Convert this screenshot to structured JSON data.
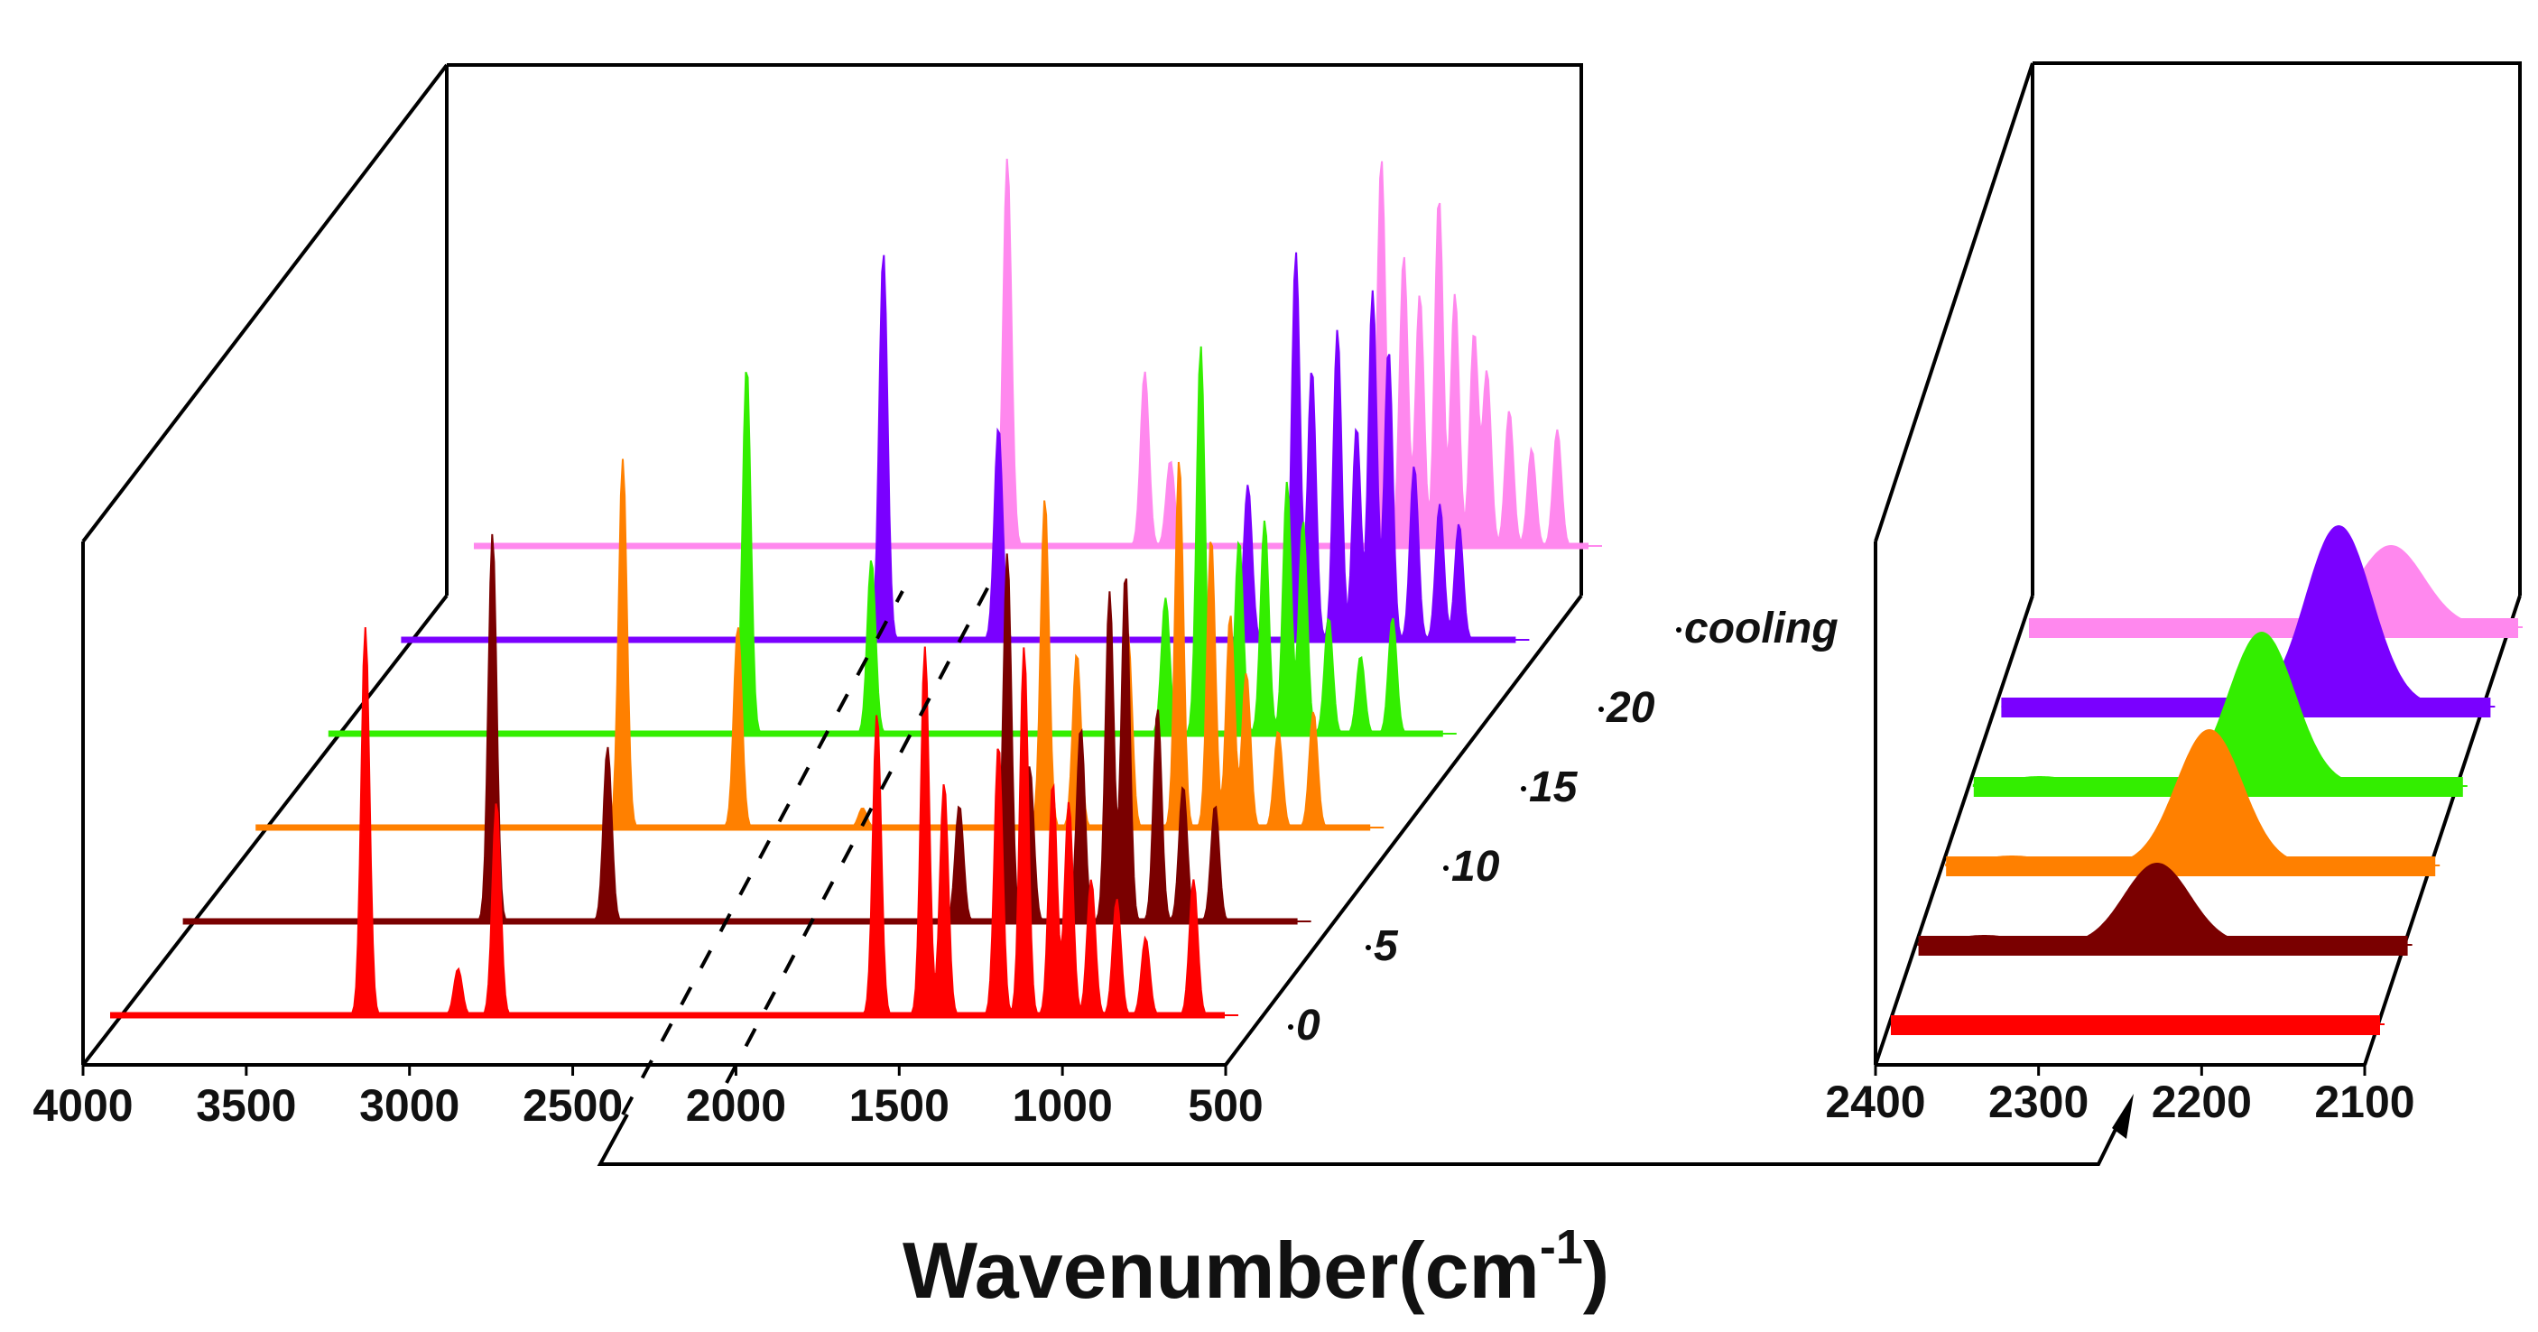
{
  "chart_data": [
    {
      "type": "line",
      "style": "3D waterfall, filled spectra",
      "panel": "main",
      "x_reversed": true,
      "xlim": [
        4000,
        500
      ],
      "xticks": [
        4000,
        3500,
        3000,
        2500,
        2000,
        1500,
        1000,
        500
      ],
      "xtick_labels": [
        "4000",
        "3500",
        "3000",
        "2500",
        "2000",
        "1500",
        "1000",
        "500"
      ],
      "ylabel": "",
      "zlabel": "",
      "depth_labels": [
        "0",
        "5",
        "10",
        "15",
        "20",
        "cooling"
      ],
      "series": [
        {
          "name": "0",
          "color": "#ff0000",
          "peaks": [
            [
              3230,
              1.0
            ],
            [
              2820,
              0.55
            ],
            [
              2940,
              0.12
            ],
            [
              1630,
              0.78
            ],
            [
              1480,
              0.95
            ],
            [
              1420,
              0.6
            ],
            [
              1250,
              0.7
            ],
            [
              1170,
              0.95
            ],
            [
              1080,
              0.6
            ],
            [
              1030,
              0.55
            ],
            [
              960,
              0.35
            ],
            [
              880,
              0.3
            ],
            [
              790,
              0.2
            ],
            [
              640,
              0.35
            ]
          ]
        },
        {
          "name": "5",
          "color": "#7a0000",
          "peaks": [
            [
              3060,
              1.0
            ],
            [
              2700,
              0.45
            ],
            [
              1600,
              0.3
            ],
            [
              1450,
              0.95
            ],
            [
              1380,
              0.4
            ],
            [
              1220,
              0.5
            ],
            [
              1130,
              0.85
            ],
            [
              1080,
              0.9
            ],
            [
              980,
              0.55
            ],
            [
              900,
              0.35
            ],
            [
              800,
              0.3
            ]
          ]
        },
        {
          "name": "10",
          "color": "#ff8000",
          "peaks": [
            [
              2880,
              0.95
            ],
            [
              2520,
              0.52
            ],
            [
              2130,
              0.05
            ],
            [
              1560,
              0.85
            ],
            [
              1460,
              0.45
            ],
            [
              1300,
              0.5
            ],
            [
              1140,
              0.95
            ],
            [
              1040,
              0.75
            ],
            [
              980,
              0.55
            ],
            [
              930,
              0.4
            ],
            [
              830,
              0.25
            ],
            [
              720,
              0.3
            ]
          ]
        },
        {
          "name": "15",
          "color": "#33ee00",
          "peaks": [
            [
              2720,
              0.95
            ],
            [
              2330,
              0.45
            ],
            [
              1410,
              0.35
            ],
            [
              1300,
              1.0
            ],
            [
              1180,
              0.5
            ],
            [
              1100,
              0.55
            ],
            [
              1030,
              0.65
            ],
            [
              980,
              0.55
            ],
            [
              900,
              0.3
            ],
            [
              800,
              0.2
            ],
            [
              700,
              0.3
            ]
          ]
        },
        {
          "name": "20",
          "color": "#7a00ff",
          "peaks": [
            [
              2520,
              1.0
            ],
            [
              2160,
              0.55
            ],
            [
              1380,
              0.4
            ],
            [
              1230,
              1.0
            ],
            [
              1180,
              0.7
            ],
            [
              1100,
              0.8
            ],
            [
              1040,
              0.55
            ],
            [
              990,
              0.9
            ],
            [
              940,
              0.75
            ],
            [
              860,
              0.45
            ],
            [
              780,
              0.35
            ],
            [
              720,
              0.3
            ]
          ]
        },
        {
          "name": "cooling",
          "color": "#ff88ee",
          "peaks": [
            [
              2360,
              1.0
            ],
            [
              1930,
              0.45
            ],
            [
              1850,
              0.22
            ],
            [
              1190,
              1.0
            ],
            [
              1120,
              0.75
            ],
            [
              1070,
              0.65
            ],
            [
              1010,
              0.9
            ],
            [
              960,
              0.65
            ],
            [
              900,
              0.55
            ],
            [
              860,
              0.45
            ],
            [
              790,
              0.35
            ],
            [
              720,
              0.25
            ],
            [
              640,
              0.3
            ]
          ]
        }
      ]
    },
    {
      "type": "line",
      "style": "3D waterfall, filled spectra (zoom)",
      "panel": "zoom",
      "x_reversed": true,
      "xlim": [
        2400,
        2100
      ],
      "xticks": [
        2400,
        2300,
        2200,
        2100
      ],
      "xtick_labels": [
        "2400",
        "2300",
        "2200",
        "2100"
      ],
      "series": [
        {
          "name": "0",
          "color": "#ff0000",
          "peaks": []
        },
        {
          "name": "5",
          "color": "#7a0000",
          "peaks": [
            [
              2360,
              0.05
            ],
            [
              2255,
              0.45
            ]
          ]
        },
        {
          "name": "10",
          "color": "#ff8000",
          "peaks": [
            [
              2360,
              0.05
            ],
            [
              2240,
              0.75
            ]
          ]
        },
        {
          "name": "15",
          "color": "#33ee00",
          "peaks": [
            [
              2360,
              0.05
            ],
            [
              2225,
              0.85
            ]
          ]
        },
        {
          "name": "20",
          "color": "#7a00ff",
          "peaks": [
            [
              2195,
              1.0
            ]
          ]
        },
        {
          "name": "cooling",
          "color": "#ff88ee",
          "peaks": [
            [
              2180,
              0.45
            ]
          ]
        }
      ]
    }
  ],
  "xlabel_main": "Wavenumber(cm",
  "xlabel_sup": "-1",
  "xlabel_close": ")"
}
